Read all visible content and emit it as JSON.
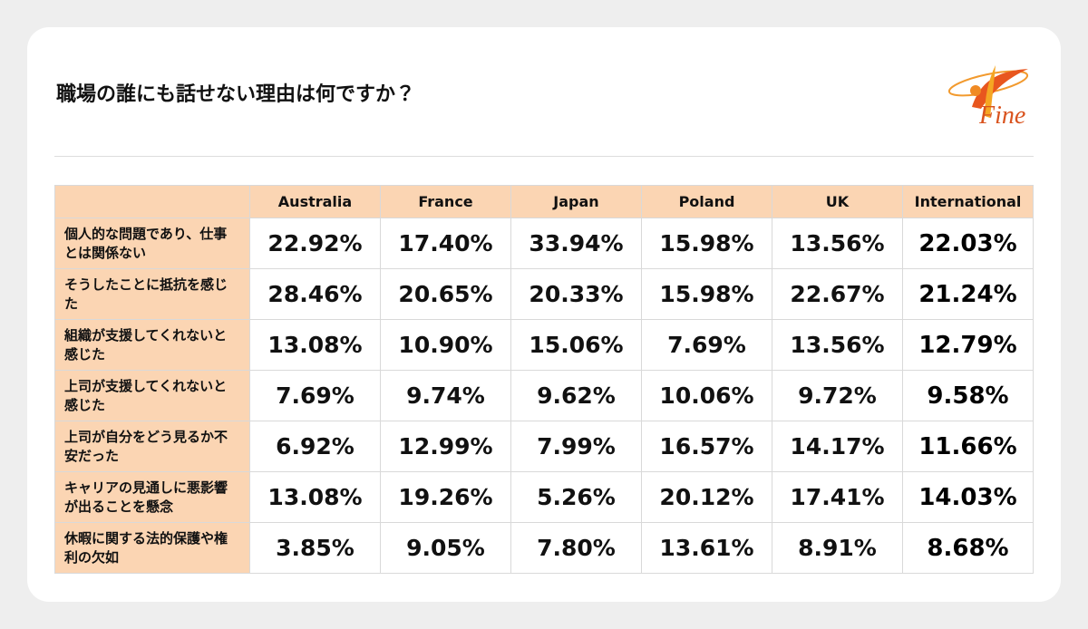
{
  "header": {
    "title": "職場の誰にも話せない理由は何ですか？",
    "logo": "Fine"
  },
  "table": {
    "columns": [
      "Australia",
      "France",
      "Japan",
      "Poland",
      "UK",
      "International"
    ],
    "rows": [
      {
        "label": "個人的な問題であり、仕事とは関係ない",
        "values": [
          "22.92%",
          "17.40%",
          "33.94%",
          "15.98%",
          "13.56%",
          "22.03%"
        ]
      },
      {
        "label": "そうしたことに抵抗を感じた",
        "values": [
          "28.46%",
          "20.65%",
          "20.33%",
          "15.98%",
          "22.67%",
          "21.24%"
        ]
      },
      {
        "label": "組織が支援してくれないと感じた",
        "values": [
          "13.08%",
          "10.90%",
          "15.06%",
          "7.69%",
          "13.56%",
          "12.79%"
        ]
      },
      {
        "label": "上司が支援してくれないと感じた",
        "values": [
          "7.69%",
          "9.74%",
          "9.62%",
          "10.06%",
          "9.72%",
          "9.58%"
        ]
      },
      {
        "label": "上司が自分をどう見るか不安だった",
        "values": [
          "6.92%",
          "12.99%",
          "7.99%",
          "16.57%",
          "14.17%",
          "11.66%"
        ]
      },
      {
        "label": "キャリアの見通しに悪影響が出ることを懸念",
        "values": [
          "13.08%",
          "19.26%",
          "5.26%",
          "20.12%",
          "17.41%",
          "14.03%"
        ]
      },
      {
        "label": "休暇に関する法的保護や権利の欠如",
        "values": [
          "3.85%",
          "9.05%",
          "7.80%",
          "13.61%",
          "8.91%",
          "8.68%"
        ]
      }
    ]
  }
}
